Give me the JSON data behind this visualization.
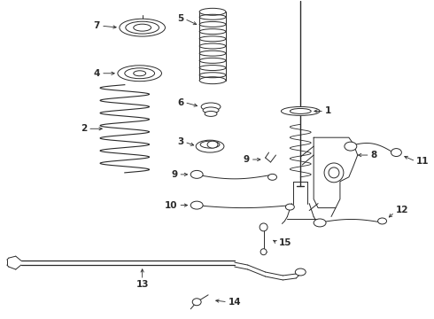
{
  "bg_color": "#ffffff",
  "line_color": "#2a2a2a",
  "fig_width": 4.9,
  "fig_height": 3.6,
  "dpi": 100,
  "label_fs": 7.5,
  "lw": 0.7
}
